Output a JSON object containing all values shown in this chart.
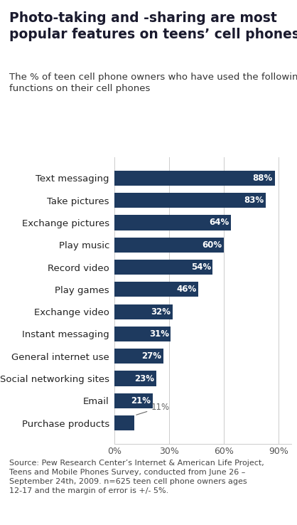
{
  "title": "Photo-taking and -sharing are most\npopular features on teens’ cell phones",
  "subtitle": "The % of teen cell phone owners who have used the following\nfunctions on their cell phones",
  "categories": [
    "Purchase products",
    "Email",
    "Social networking sites",
    "General internet use",
    "Instant messaging",
    "Exchange video",
    "Play games",
    "Record video",
    "Play music",
    "Exchange pictures",
    "Take pictures",
    "Text messaging"
  ],
  "values": [
    11,
    21,
    23,
    27,
    31,
    32,
    46,
    54,
    60,
    64,
    83,
    88
  ],
  "bar_color": "#1e3a5f",
  "bar_label_color": "#ffffff",
  "outside_label_color": "#666666",
  "xlabel_ticks": [
    0,
    30,
    60,
    90
  ],
  "xlabel_labels": [
    "0%",
    "30%",
    "60%",
    "90%"
  ],
  "xlim": [
    0,
    97
  ],
  "source_text": "Source: Pew Research Center’s Internet & American Life Project,\nTeens and Mobile Phones Survey, conducted from June 26 –\nSeptember 24th, 2009. n=625 teen cell phone owners ages\n12-17 and the margin of error is +/- 5%.",
  "fig_bg_color": "#ffffff",
  "title_fontsize": 13.5,
  "subtitle_fontsize": 9.5,
  "bar_label_fontsize": 8.5,
  "source_fontsize": 8,
  "category_fontsize": 9.5
}
